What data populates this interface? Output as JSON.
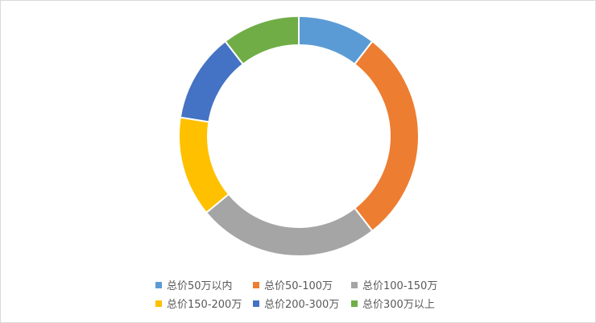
{
  "chart_data": {
    "type": "pie",
    "style": "donut",
    "title": "",
    "legend_position": "bottom",
    "series": [
      {
        "name": "总价50万以内",
        "value": 10.5,
        "color": "#5B9BD5"
      },
      {
        "name": "总价50-100万",
        "value": 29.0,
        "color": "#ED7D31"
      },
      {
        "name": "总价100-150万",
        "value": 24.5,
        "color": "#A5A5A5"
      },
      {
        "name": "总价150-200万",
        "value": 13.5,
        "color": "#FFC000"
      },
      {
        "name": "总价200-300万",
        "value": 12.0,
        "color": "#4472C4"
      },
      {
        "name": "总价300万以上",
        "value": 10.5,
        "color": "#70AD47"
      }
    ]
  }
}
